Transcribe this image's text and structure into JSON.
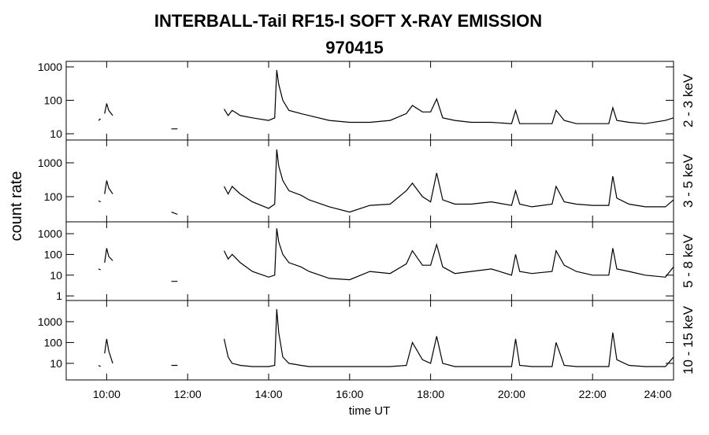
{
  "title": "INTERBALL-Tail RF15-I SOFT X-RAY EMISSION",
  "subtitle": "970415",
  "xlabel": "time UT",
  "ylabel": "count rate",
  "xlim": [
    9,
    24
  ],
  "xticks": [
    {
      "value": 10,
      "label": "10:00"
    },
    {
      "value": 12,
      "label": "12:00"
    },
    {
      "value": 14,
      "label": "14:00"
    },
    {
      "value": 16,
      "label": "16:00"
    },
    {
      "value": 18,
      "label": "18:00"
    },
    {
      "value": 20,
      "label": "20:00"
    },
    {
      "value": 22,
      "label": "22:00"
    },
    {
      "value": 24,
      "label": "24:00"
    }
  ],
  "x": [
    9.8,
    9.85,
    9.9,
    9.95,
    10.0,
    10.05,
    10.15,
    10.5,
    11.6,
    11.75,
    12.0,
    12.9,
    13.0,
    13.1,
    13.3,
    13.6,
    14.0,
    14.15,
    14.2,
    14.25,
    14.35,
    14.5,
    14.8,
    15.0,
    15.5,
    16.0,
    16.5,
    17.0,
    17.4,
    17.55,
    17.8,
    18.0,
    18.15,
    18.3,
    18.6,
    19.0,
    19.5,
    20.0,
    20.1,
    20.2,
    20.5,
    21.0,
    21.1,
    21.3,
    21.6,
    22.0,
    22.4,
    22.5,
    22.6,
    22.9,
    23.3,
    23.8,
    24.0
  ],
  "chart_data": [
    {
      "type": "line",
      "name": "2 - 3 keV",
      "log": true,
      "color": "#000000",
      "ylim": [
        6.5,
        1460
      ],
      "yticks": [
        10,
        100,
        1000
      ],
      "values": [
        25,
        28,
        null,
        40,
        80,
        50,
        35,
        null,
        14,
        14,
        null,
        55,
        35,
        50,
        35,
        30,
        25,
        30,
        800,
        300,
        100,
        50,
        40,
        35,
        25,
        22,
        22,
        25,
        40,
        70,
        45,
        45,
        110,
        30,
        25,
        22,
        22,
        20,
        50,
        20,
        20,
        20,
        50,
        25,
        20,
        20,
        20,
        60,
        25,
        22,
        20,
        25,
        30
      ]
    },
    {
      "type": "line",
      "name": "3 - 5 keV",
      "log": true,
      "color": "#000000",
      "ylim": [
        18,
        4720
      ],
      "yticks": [
        100,
        1000
      ],
      "values": [
        75,
        70,
        null,
        120,
        300,
        180,
        120,
        null,
        35,
        30,
        null,
        200,
        120,
        200,
        120,
        70,
        45,
        60,
        2500,
        800,
        300,
        150,
        110,
        80,
        50,
        35,
        55,
        60,
        150,
        250,
        100,
        70,
        500,
        80,
        60,
        60,
        70,
        55,
        150,
        60,
        50,
        60,
        200,
        70,
        60,
        55,
        55,
        400,
        90,
        60,
        50,
        50,
        80
      ]
    },
    {
      "type": "line",
      "name": "5 - 8 keV",
      "log": true,
      "color": "#000000",
      "ylim": [
        0.6,
        3730
      ],
      "yticks": [
        1,
        10,
        100,
        1000
      ],
      "values": [
        20,
        18,
        null,
        40,
        200,
        80,
        50,
        null,
        5,
        5,
        null,
        150,
        60,
        100,
        40,
        15,
        8,
        10,
        1800,
        400,
        100,
        40,
        25,
        15,
        7,
        6,
        15,
        12,
        35,
        150,
        30,
        30,
        300,
        25,
        12,
        15,
        20,
        10,
        100,
        15,
        12,
        15,
        150,
        30,
        15,
        10,
        10,
        200,
        20,
        15,
        10,
        8,
        25
      ]
    },
    {
      "type": "line",
      "name": "10 - 15 keV",
      "log": true,
      "color": "#000000",
      "ylim": [
        1.6,
        10400
      ],
      "yticks": [
        10,
        100,
        1000
      ],
      "values": [
        8,
        7,
        null,
        30,
        150,
        40,
        10,
        null,
        8,
        8,
        null,
        150,
        20,
        10,
        8,
        7,
        7,
        8,
        4000,
        300,
        20,
        10,
        8,
        7,
        7,
        7,
        7,
        7,
        8,
        100,
        15,
        10,
        200,
        10,
        7,
        7,
        7,
        7,
        150,
        8,
        7,
        7,
        100,
        8,
        7,
        7,
        7,
        300,
        15,
        8,
        7,
        7,
        20
      ]
    }
  ]
}
